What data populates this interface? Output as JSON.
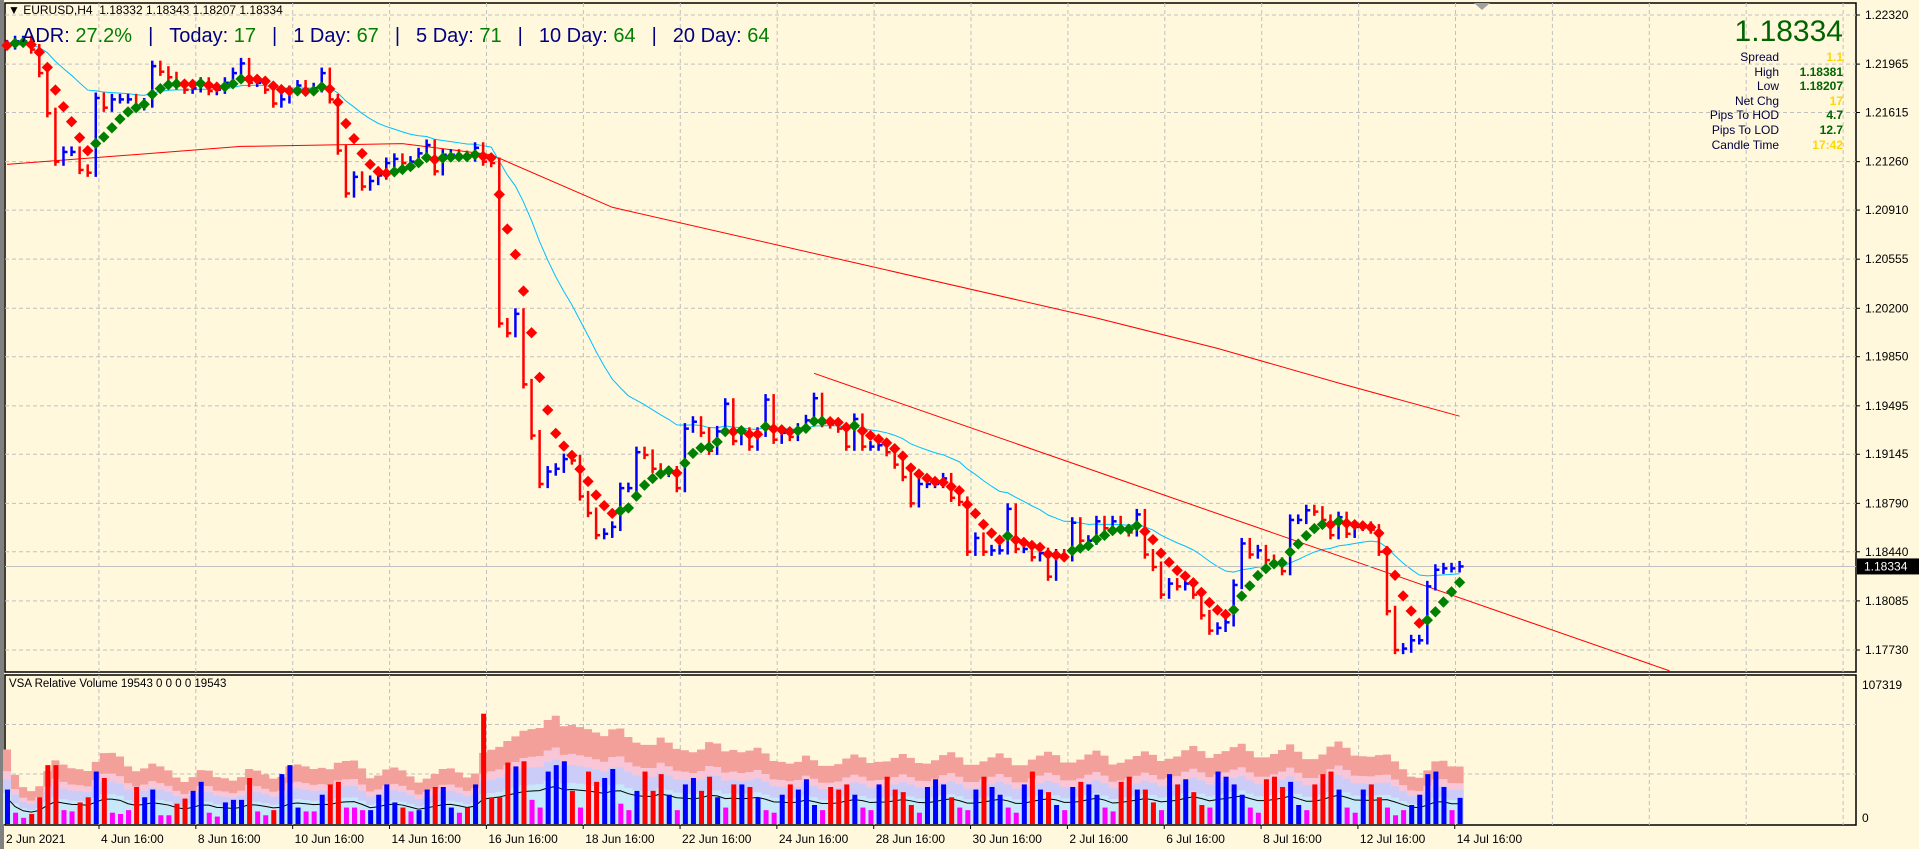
{
  "header": {
    "symbol": "EURUSD,H4",
    "ohlc": "1.18332 1.18343 1.18207 1.18334"
  },
  "adr_bar": {
    "items": [
      {
        "label": "ADR:",
        "value": "27.2%"
      },
      {
        "label": "Today:",
        "value": "17"
      },
      {
        "label": "1 Day:",
        "value": "67"
      },
      {
        "label": "5 Day:",
        "value": "71"
      },
      {
        "label": "10 Day:",
        "value": "64"
      },
      {
        "label": "20 Day:",
        "value": "64"
      }
    ],
    "separator": "|"
  },
  "info_panel": {
    "price": "1.18334",
    "rows": [
      {
        "label": "Spread",
        "value": "1.1",
        "color": "#FFD700"
      },
      {
        "label": "High",
        "value": "1.18381",
        "color": "#006400"
      },
      {
        "label": "Low",
        "value": "1.18207",
        "color": "#006400"
      },
      {
        "label": "Net Chg",
        "value": "17",
        "color": "#FFD700"
      },
      {
        "label": "Pips To HOD",
        "value": "4.7",
        "color": "#006400"
      },
      {
        "label": "Pips To LOD",
        "value": "12.7",
        "color": "#006400"
      },
      {
        "label": "Candle Time",
        "value": "17:42",
        "color": "#FFD700"
      }
    ]
  },
  "volume_pane": {
    "title": "VSA Relative Volume 19543 0 0 0 0 19543",
    "axis_max_label": "107319",
    "axis_min_label": "0"
  },
  "colors": {
    "background": "#FFF8DC",
    "grid": "#C0C0C0",
    "up_bar": "#0000FF",
    "down_bar": "#FF0000",
    "low_volume": "#FF00FF",
    "trend_up": "#008000",
    "trend_down": "#FF0000",
    "ma_fast": "#00BFFF",
    "ma_slow": "#FF0000"
  },
  "chart_data": [
    {
      "type": "bar",
      "style": "HLC bars (close tick)",
      "ylim": [
        1.1773,
        1.2232
      ],
      "grid": true,
      "y_ticks": [
        "1.22320",
        "1.21965",
        "1.21615",
        "1.21260",
        "1.20910",
        "1.20555",
        "1.20200",
        "1.19850",
        "1.19495",
        "1.19145",
        "1.18790",
        "1.18440",
        "1.18085",
        "1.17730"
      ],
      "x_ticks": [
        "2 Jun 2021",
        "4 Jun 16:00",
        "8 Jun 16:00",
        "10 Jun 16:00",
        "14 Jun 16:00",
        "16 Jun 16:00",
        "18 Jun 16:00",
        "22 Jun 16:00",
        "24 Jun 16:00",
        "28 Jun 16:00",
        "30 Jun 16:00",
        "2 Jul 16:00",
        "6 Jul 16:00",
        "8 Jul 16:00",
        "12 Jul 16:00",
        "14 Jul 16:00"
      ],
      "current_price": "1.18334",
      "close": [
        1.221,
        1.2213,
        1.2213,
        1.2207,
        1.219,
        1.2161,
        1.2126,
        1.2133,
        1.2133,
        1.212,
        1.2118,
        1.2172,
        1.2165,
        1.2171,
        1.2171,
        1.2171,
        1.2166,
        1.2168,
        1.2195,
        1.2191,
        1.2187,
        1.2181,
        1.2178,
        1.2179,
        1.2183,
        1.2177,
        1.2178,
        1.2183,
        1.219,
        1.2197,
        1.2183,
        1.2183,
        1.2178,
        1.2168,
        1.2171,
        1.2177,
        1.2181,
        1.2178,
        1.2179,
        1.219,
        1.2171,
        1.2134,
        1.2103,
        1.2115,
        1.2108,
        1.2112,
        1.2116,
        1.2125,
        1.2128,
        1.2125,
        1.2126,
        1.2132,
        1.2138,
        1.2119,
        1.2131,
        1.2131,
        1.213,
        1.2129,
        1.2136,
        1.2126,
        1.2125,
        1.2009,
        1.2002,
        1.2016,
        1.1965,
        1.1928,
        1.1893,
        1.1902,
        1.1904,
        1.1911,
        1.191,
        1.1884,
        1.1872,
        1.1856,
        1.1857,
        1.1862,
        1.189,
        1.189,
        1.1916,
        1.1914,
        1.1904,
        1.1901,
        1.1902,
        1.189,
        1.1933,
        1.1938,
        1.193,
        1.1917,
        1.1931,
        1.1951,
        1.1924,
        1.193,
        1.192,
        1.193,
        1.1954,
        1.1925,
        1.193,
        1.1927,
        1.1933,
        1.1939,
        1.1955,
        1.1937,
        1.1936,
        1.1933,
        1.192,
        1.194,
        1.192,
        1.192,
        1.1921,
        1.1916,
        1.1907,
        1.1898,
        1.1879,
        1.1893,
        1.1893,
        1.1893,
        1.1897,
        1.1883,
        1.188,
        1.1844,
        1.1854,
        1.1844,
        1.1845,
        1.1845,
        1.1875,
        1.1846,
        1.1846,
        1.184,
        1.1843,
        1.1826,
        1.1842,
        1.184,
        1.1865,
        1.1852,
        1.1852,
        1.1866,
        1.1861,
        1.1866,
        1.186,
        1.1858,
        1.1871,
        1.1842,
        1.1833,
        1.1813,
        1.1821,
        1.1819,
        1.1821,
        1.1813,
        1.1798,
        1.1787,
        1.1789,
        1.1793,
        1.182,
        1.185,
        1.1842,
        1.1845,
        1.1838,
        1.1836,
        1.183,
        1.1867,
        1.1867,
        1.1874,
        1.1873,
        1.1867,
        1.1856,
        1.1869,
        1.1857,
        1.1862,
        1.1862,
        1.186,
        1.1844,
        1.1801,
        1.1773,
        1.1774,
        1.178,
        1.178,
        1.1819,
        1.1831,
        1.1832,
        1.1832,
        1.18334
      ],
      "ma_slow_points": [
        [
          0,
          1.2124
        ],
        [
          29,
          1.2137
        ],
        [
          49,
          1.2139
        ],
        [
          60,
          1.2131
        ],
        [
          75,
          1.2093
        ],
        [
          105,
          1.2053
        ],
        [
          135,
          1.2013
        ],
        [
          150,
          1.1991
        ],
        [
          165,
          1.1966
        ],
        [
          180,
          1.1942
        ]
      ],
      "trendline": [
        [
          100,
          1.1973
        ],
        [
          206,
          1.1758
        ]
      ]
    },
    {
      "type": "bar",
      "title": "VSA Relative Volume",
      "ylim": [
        0,
        107319
      ],
      "values": [
        26000,
        8000,
        4000,
        7000,
        20000,
        45000,
        45000,
        10000,
        9000,
        16000,
        20000,
        40000,
        35000,
        8000,
        7000,
        10000,
        28000,
        20000,
        26000,
        6000,
        6000,
        15000,
        19000,
        25000,
        32000,
        8000,
        5000,
        16000,
        18000,
        18000,
        35000,
        9000,
        6000,
        10000,
        38000,
        45000,
        12000,
        9000,
        9000,
        22000,
        30000,
        32000,
        12000,
        12000,
        10000,
        10000,
        22000,
        30000,
        16000,
        12000,
        9000,
        10000,
        26000,
        28000,
        28000,
        12000,
        8000,
        12000,
        30000,
        85000,
        20000,
        20000,
        47000,
        44000,
        48000,
        18000,
        12000,
        40000,
        45000,
        48000,
        25000,
        12000,
        40000,
        32000,
        35000,
        42000,
        15000,
        10000,
        25000,
        40000,
        25000,
        38000,
        22000,
        10000,
        30000,
        35000,
        25000,
        36000,
        20000,
        12000,
        30000,
        30000,
        28000,
        20000,
        10000,
        8000,
        22000,
        30000,
        26000,
        34000,
        14000,
        10000,
        28000,
        26000,
        30000,
        22000,
        12000,
        10000,
        30000,
        36000,
        26000,
        24000,
        14000,
        8000,
        28000,
        34000,
        30000,
        20000,
        12000,
        10000,
        26000,
        36000,
        28000,
        22000,
        12000,
        8000,
        30000,
        40000,
        26000,
        24000,
        14000,
        10000,
        28000,
        32000,
        30000,
        22000,
        12000,
        9000,
        32000,
        36000,
        26000,
        26000,
        16000,
        10000,
        38000,
        30000,
        34000,
        24000,
        14000,
        12000,
        40000,
        36000,
        30000,
        22000,
        12000,
        8000,
        34000,
        36000,
        28000,
        32000,
        14000,
        10000,
        30000,
        38000,
        40000,
        26000,
        12000,
        8000,
        26000,
        30000,
        20000,
        12000,
        6000,
        10000,
        14000,
        22000,
        38000,
        40000,
        28000,
        10000,
        19543
      ]
    }
  ]
}
